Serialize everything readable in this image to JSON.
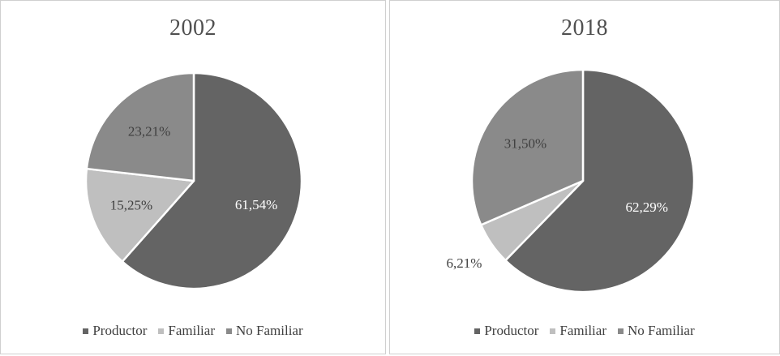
{
  "chart_data": [
    {
      "type": "pie",
      "title": "2002",
      "categories": [
        "Productor",
        "Familiar",
        "No Familiar"
      ],
      "values": [
        61.54,
        15.25,
        23.21
      ],
      "labels": [
        "61,54%",
        "15,25%",
        "23,21%"
      ],
      "colors": [
        "#646464",
        "#bfbfbf",
        "#8a8a8a"
      ],
      "legend_position": "bottom",
      "legend": [
        "Productor",
        "Familiar",
        "No Familiar"
      ]
    },
    {
      "type": "pie",
      "title": "2018",
      "categories": [
        "Productor",
        "Familiar",
        "No Familiar"
      ],
      "values": [
        62.29,
        6.21,
        31.5
      ],
      "labels": [
        "62,29%",
        "6,21%",
        "31,50%"
      ],
      "colors": [
        "#646464",
        "#bfbfbf",
        "#8a8a8a"
      ],
      "legend_position": "bottom",
      "legend": [
        "Productor",
        "Familiar",
        "No Familiar"
      ]
    }
  ]
}
